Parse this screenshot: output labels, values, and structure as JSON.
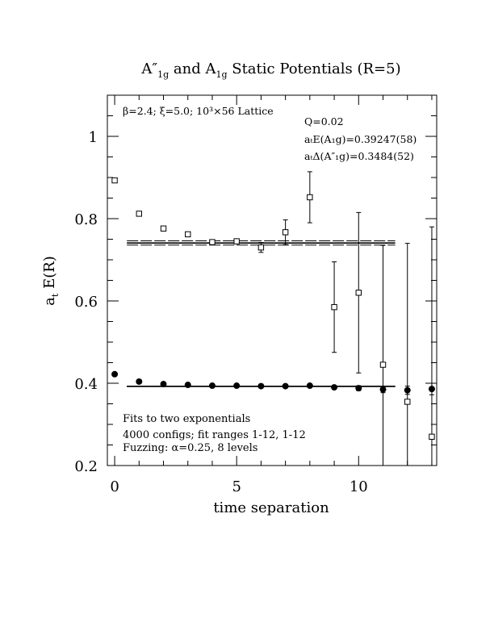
{
  "chart_data": {
    "type": "scatter",
    "title_main": "A″",
    "title_sub1": "1g",
    "title_mid": " and A",
    "title_sub2": "1g",
    "title_end": " Static Potentials (R=5)",
    "xlabel": "time separation",
    "ylabel_main": "a",
    "ylabel_sub": "t",
    "ylabel_end": " E(R)",
    "xlim": [
      -0.3,
      13.2
    ],
    "ylim": [
      0.2,
      1.1
    ],
    "x_ticks": [
      0,
      5,
      10
    ],
    "x_tick_labels": [
      "0",
      "5",
      "10"
    ],
    "y_ticks": [
      0.2,
      0.4,
      0.6,
      0.8,
      1.0
    ],
    "y_tick_labels": [
      "0.2",
      "0.4",
      "0.6",
      "0.8",
      "1"
    ],
    "annotations": {
      "lattice": "β=2.4; ξ=5.0; 10³×56 Lattice",
      "q": "Q=0.02",
      "energy_a1g": "aₜE(A₁g)=0.39247(58)",
      "delta_a1g_pp": "aₜΔ(A″₁g)=0.3484(52)",
      "fit_line1": "Fits to two exponentials",
      "fit_line2": "4000 configs; fit ranges 1-12, 1-12",
      "fit_line3": "Fuzzing: α=0.25, 8 levels"
    },
    "series": [
      {
        "marker": "filled-circle",
        "points": [
          {
            "x": 0,
            "y": 0.422,
            "err": 0.002
          },
          {
            "x": 1,
            "y": 0.404,
            "err": 0.002
          },
          {
            "x": 2,
            "y": 0.398,
            "err": 0.002
          },
          {
            "x": 3,
            "y": 0.396,
            "err": 0.002
          },
          {
            "x": 4,
            "y": 0.394,
            "err": 0.002
          },
          {
            "x": 5,
            "y": 0.394,
            "err": 0.002
          },
          {
            "x": 6,
            "y": 0.393,
            "err": 0.003
          },
          {
            "x": 7,
            "y": 0.393,
            "err": 0.003
          },
          {
            "x": 8,
            "y": 0.394,
            "err": 0.004
          },
          {
            "x": 9,
            "y": 0.39,
            "err": 0.005
          },
          {
            "x": 10,
            "y": 0.388,
            "err": 0.006
          },
          {
            "x": 11,
            "y": 0.385,
            "err": 0.008
          },
          {
            "x": 12,
            "y": 0.383,
            "err": 0.01
          },
          {
            "x": 13,
            "y": 0.386,
            "err": 0.014
          }
        ],
        "fit_band": {
          "x_range": [
            0.5,
            11.5
          ],
          "y_center": 0.3925,
          "half_width": 0.0006
        }
      },
      {
        "marker": "open-square",
        "points": [
          {
            "x": 0,
            "y": 0.893,
            "err": 0.002
          },
          {
            "x": 1,
            "y": 0.812,
            "err": 0.002
          },
          {
            "x": 2,
            "y": 0.776,
            "err": 0.003
          },
          {
            "x": 3,
            "y": 0.762,
            "err": 0.004
          },
          {
            "x": 4,
            "y": 0.743,
            "err": 0.005
          },
          {
            "x": 5,
            "y": 0.745,
            "err": 0.006
          },
          {
            "x": 6,
            "y": 0.73,
            "err": 0.012
          },
          {
            "x": 7,
            "y": 0.767,
            "err": 0.03
          },
          {
            "x": 8,
            "y": 0.852,
            "err": 0.062
          },
          {
            "x": 9,
            "y": 0.585,
            "err": 0.11
          },
          {
            "x": 10,
            "y": 0.62,
            "err": 0.195
          },
          {
            "x": 11,
            "y": 0.445,
            "err": 0.29
          },
          {
            "x": 12,
            "y": 0.355,
            "err": 0.385
          },
          {
            "x": 13,
            "y": 0.27,
            "err": 0.51
          }
        ],
        "fit_band": {
          "x_range": [
            0.5,
            11.5
          ],
          "y_center": 0.7409,
          "half_width": 0.0052
        }
      }
    ]
  }
}
